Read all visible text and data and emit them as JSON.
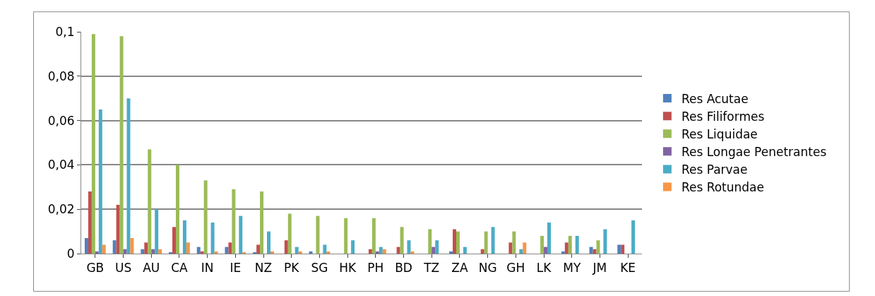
{
  "chart_data": {
    "type": "bar",
    "categories": [
      "GB",
      "US",
      "AU",
      "CA",
      "IN",
      "IE",
      "NZ",
      "PK",
      "SG",
      "HK",
      "PH",
      "BD",
      "TZ",
      "ZA",
      "NG",
      "GH",
      "LK",
      "MY",
      "JM",
      "KE"
    ],
    "series": [
      {
        "name": "Res Acutae",
        "color": "#4f81bd",
        "values": [
          0.007,
          0.006,
          0.002,
          0.0005,
          0.003,
          0.003,
          0.0005,
          0,
          0.001,
          0,
          0,
          0,
          0,
          0.001,
          0,
          0,
          0,
          0.001,
          0.003,
          0.004
        ]
      },
      {
        "name": "Res Filiformes",
        "color": "#c0504d",
        "values": [
          0.028,
          0.022,
          0.005,
          0.012,
          0.001,
          0.005,
          0.004,
          0.006,
          0,
          0,
          0.002,
          0.003,
          0,
          0.011,
          0.002,
          0.005,
          0,
          0.005,
          0.002,
          0.004
        ]
      },
      {
        "name": "Res Liquidae",
        "color": "#9bbb59",
        "values": [
          0.099,
          0.098,
          0.047,
          0.04,
          0.033,
          0.029,
          0.028,
          0.018,
          0.017,
          0.016,
          0.016,
          0.012,
          0.011,
          0.01,
          0.01,
          0.01,
          0.008,
          0.008,
          0.006,
          0
        ]
      },
      {
        "name": "Res Longae Penetrantes",
        "color": "#8064a2",
        "values": [
          0.001,
          0.002,
          0.002,
          0,
          0,
          0,
          0,
          0,
          0,
          0,
          0.001,
          0,
          0.003,
          0,
          0,
          0,
          0.003,
          0,
          0,
          0
        ]
      },
      {
        "name": "Res Parvae",
        "color": "#4bacc6",
        "values": [
          0.065,
          0.07,
          0.02,
          0.015,
          0.014,
          0.017,
          0.01,
          0.003,
          0.004,
          0.006,
          0.003,
          0.006,
          0.006,
          0.003,
          0.012,
          0.002,
          0.014,
          0.008,
          0.011,
          0.015
        ]
      },
      {
        "name": "Res Rotundae",
        "color": "#f79646",
        "values": [
          0.004,
          0.007,
          0.002,
          0.005,
          0.001,
          0.0005,
          0.001,
          0.001,
          0.001,
          0,
          0.002,
          0.001,
          0,
          0,
          0,
          0.005,
          0,
          0,
          0,
          0
        ]
      }
    ],
    "ylim": [
      0,
      0.1
    ],
    "yticks": [
      0,
      {
        "value": 0.02,
        "label": "0,02"
      },
      {
        "value": 0.04,
        "label": "0,04"
      },
      {
        "value": 0.06,
        "label": "0,06"
      },
      {
        "value": 0.08,
        "label": "0,08"
      },
      {
        "value": 0.1,
        "label": "0,1"
      }
    ],
    "grid": "y",
    "legend": "right"
  }
}
